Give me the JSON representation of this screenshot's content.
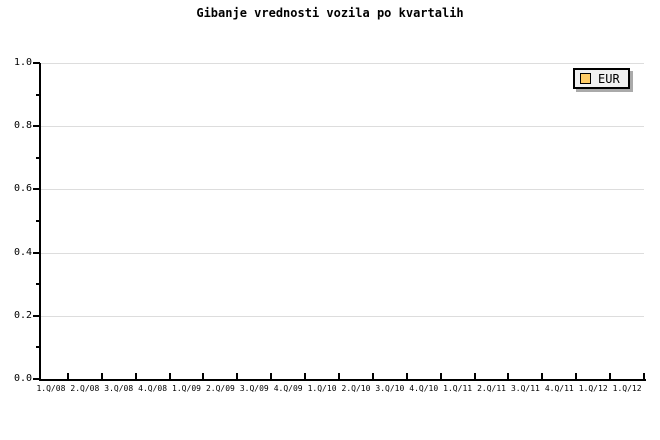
{
  "chart_data": {
    "type": "line",
    "title": "Gibanje vrednosti vozila po kvartalih",
    "categories": [
      "1.Q/08",
      "2.Q/08",
      "3.Q/08",
      "4.Q/08",
      "1.Q/09",
      "2.Q/09",
      "3.Q/09",
      "4.Q/09",
      "1.Q/10",
      "2.Q/10",
      "3.Q/10",
      "4.Q/10",
      "1.Q/11",
      "2.Q/11",
      "3.Q/11",
      "4.Q/11",
      "1.Q/12",
      "1.Q/12"
    ],
    "y_axis": {
      "min": 0.0,
      "max": 1.0,
      "major_tick_interval": 0.2,
      "minor_tick_interval": 0.1,
      "tick_labels_top_to_bottom": [
        "1.0",
        "0.8",
        "0.6",
        "0.4",
        "0.2",
        "0.0"
      ]
    },
    "series": [
      {
        "name": "EUR",
        "color": "#FFCC66",
        "values": []
      }
    ],
    "plot_empty": true,
    "grid": {
      "horizontal": true,
      "vertical": false
    },
    "legend": {
      "position": "top-right",
      "entries": [
        {
          "label": "EUR",
          "swatch_color": "#FFCC66"
        }
      ]
    }
  },
  "colors": {
    "background": "#FFFFFF",
    "axis": "#000000",
    "gridline": "#DDDDDD",
    "legend_bg": "#F0F0F0",
    "legend_border": "#000000",
    "legend_shadow": "#AAAAAA",
    "text": "#000000"
  }
}
